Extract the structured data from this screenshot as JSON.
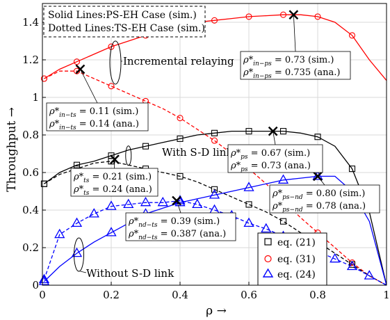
{
  "chart_data": {
    "type": "line",
    "xlabel": "ρ →",
    "ylabel": "Throughput →",
    "xlim": [
      0,
      1
    ],
    "ylim": [
      0,
      1.5
    ],
    "x_ticks": [
      "0",
      "0.2",
      "0.4",
      "0.6",
      "0.8",
      "1"
    ],
    "y_ticks": [
      "0",
      "0.2",
      "0.4",
      "0.6",
      "0.8",
      "1",
      "1.2",
      "1.4"
    ],
    "grid": true,
    "legend_position": "bottom-right",
    "legend": [
      {
        "label": "eq. (21)",
        "marker": "square",
        "color": "#000000"
      },
      {
        "label": "eq. (31)",
        "marker": "circle",
        "color": "#ff0000"
      },
      {
        "label": "eq. (24)",
        "marker": "triangle",
        "color": "#0000ff"
      }
    ],
    "note_lines": [
      "Solid Lines:PS-EH Case (sim.)",
      "Dotted Lines:TS-EH Case (sim.)"
    ],
    "series": [
      {
        "name": "PS-EH Case, Incremental relaying",
        "color": "#ff0000",
        "style": "solid",
        "x": [
          0.005,
          0.05,
          0.1,
          0.15,
          0.2,
          0.25,
          0.3,
          0.35,
          0.4,
          0.45,
          0.5,
          0.55,
          0.6,
          0.65,
          0.7,
          0.75,
          0.8,
          0.85,
          0.9,
          0.95,
          1.0
        ],
        "y": [
          1.1,
          1.15,
          1.19,
          1.23,
          1.27,
          1.3,
          1.33,
          1.36,
          1.38,
          1.4,
          1.41,
          1.42,
          1.43,
          1.435,
          1.44,
          1.44,
          1.43,
          1.4,
          1.33,
          1.2,
          1.09
        ]
      },
      {
        "name": "TS-EH Case, Incremental relaying",
        "color": "#ff0000",
        "style": "dashed",
        "x": [
          0.005,
          0.05,
          0.1,
          0.15,
          0.2,
          0.25,
          0.3,
          0.35,
          0.4,
          0.45,
          0.5,
          0.55,
          0.6,
          0.65,
          0.7,
          0.75,
          0.8,
          0.85,
          0.9,
          0.95,
          1.0
        ],
        "y": [
          1.1,
          1.14,
          1.14,
          1.1,
          1.06,
          1.02,
          0.98,
          0.94,
          0.89,
          0.83,
          0.77,
          0.7,
          0.62,
          0.54,
          0.45,
          0.36,
          0.28,
          0.2,
          0.12,
          0.05,
          0.0
        ]
      },
      {
        "name": "PS-EH Case, With S-D link",
        "color": "#000000",
        "style": "solid",
        "x": [
          0.005,
          0.05,
          0.1,
          0.15,
          0.2,
          0.25,
          0.3,
          0.35,
          0.4,
          0.45,
          0.5,
          0.55,
          0.6,
          0.65,
          0.7,
          0.75,
          0.8,
          0.85,
          0.9,
          0.95,
          1.0
        ],
        "y": [
          0.54,
          0.6,
          0.64,
          0.66,
          0.69,
          0.72,
          0.74,
          0.76,
          0.78,
          0.8,
          0.81,
          0.82,
          0.82,
          0.82,
          0.82,
          0.81,
          0.79,
          0.74,
          0.62,
          0.39,
          0.0
        ]
      },
      {
        "name": "TS-EH Case, With S-D link",
        "color": "#000000",
        "style": "dashed",
        "x": [
          0.005,
          0.05,
          0.1,
          0.15,
          0.2,
          0.25,
          0.3,
          0.35,
          0.4,
          0.45,
          0.5,
          0.55,
          0.6,
          0.65,
          0.7,
          0.75,
          0.8,
          0.85,
          0.9,
          0.95,
          1.0
        ],
        "y": [
          0.54,
          0.59,
          0.62,
          0.65,
          0.66,
          0.64,
          0.62,
          0.6,
          0.58,
          0.55,
          0.51,
          0.47,
          0.43,
          0.39,
          0.34,
          0.28,
          0.23,
          0.17,
          0.11,
          0.05,
          0.0
        ]
      },
      {
        "name": "PS-EH Case, Without S-D link",
        "color": "#0000ff",
        "style": "solid",
        "x": [
          0.005,
          0.05,
          0.1,
          0.15,
          0.2,
          0.25,
          0.3,
          0.35,
          0.4,
          0.45,
          0.5,
          0.55,
          0.6,
          0.65,
          0.7,
          0.75,
          0.8,
          0.85,
          0.9,
          0.95,
          1.0
        ],
        "y": [
          0.02,
          0.1,
          0.17,
          0.23,
          0.28,
          0.33,
          0.38,
          0.41,
          0.44,
          0.46,
          0.48,
          0.5,
          0.52,
          0.54,
          0.56,
          0.57,
          0.58,
          0.58,
          0.5,
          0.34,
          0.0
        ]
      },
      {
        "name": "TS-EH Case, Without S-D link",
        "color": "#0000ff",
        "style": "dashed",
        "x": [
          0.005,
          0.05,
          0.1,
          0.15,
          0.2,
          0.25,
          0.3,
          0.35,
          0.4,
          0.45,
          0.5,
          0.55,
          0.6,
          0.65,
          0.7,
          0.75,
          0.8,
          0.85,
          0.9,
          0.95,
          1.0
        ],
        "y": [
          0.03,
          0.27,
          0.33,
          0.38,
          0.42,
          0.43,
          0.44,
          0.44,
          0.45,
          0.43,
          0.4,
          0.37,
          0.33,
          0.3,
          0.26,
          0.22,
          0.18,
          0.14,
          0.1,
          0.05,
          0.0
        ]
      }
    ],
    "optimal_points": [
      {
        "x": 0.73,
        "y": 1.44
      },
      {
        "x": 0.11,
        "y": 1.15
      },
      {
        "x": 0.67,
        "y": 0.82
      },
      {
        "x": 0.21,
        "y": 0.67
      },
      {
        "x": 0.8,
        "y": 0.58
      },
      {
        "x": 0.39,
        "y": 0.45
      }
    ],
    "labels": {
      "incremental": "Incremental relaying",
      "with_sd": "With S-D link",
      "without_sd": "Without S-D link"
    },
    "annotations": [
      {
        "sub": "in−ps",
        "lines": [
          "= 0.73 (sim.)",
          "= 0.735 (ana.)"
        ]
      },
      {
        "sub": "in−ts",
        "lines": [
          "= 0.11 (sim.)",
          "= 0.14 (ana.)"
        ]
      },
      {
        "sub": "ps",
        "lines": [
          "= 0.67 (sim.)",
          "= 0.73 (ana.)"
        ]
      },
      {
        "sub": "ts",
        "lines": [
          "= 0.21 (sim.)",
          "= 0.24 (ana.)"
        ]
      },
      {
        "sub": "ps−nd",
        "lines": [
          "= 0.80 (sim.)",
          "= 0.78 (ana.)"
        ]
      },
      {
        "sub": "nd−ts",
        "lines": [
          "= 0.39 (sim.)",
          "= 0.387 (ana.)"
        ]
      }
    ],
    "annotation_symbol": "ρ*"
  }
}
